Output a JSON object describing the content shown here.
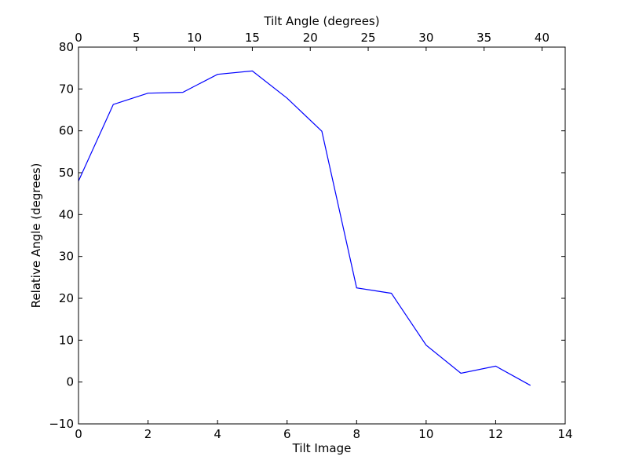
{
  "chart_data": {
    "type": "line",
    "title": "",
    "xlabel": "Tilt Image",
    "ylabel": "Relative Angle (degrees)",
    "x2label": "Tilt Angle (degrees)",
    "xlim": [
      0,
      14
    ],
    "ylim": [
      -10,
      80
    ],
    "x2lim": [
      0,
      42
    ],
    "xticks": [
      0,
      2,
      4,
      6,
      8,
      10,
      12,
      14
    ],
    "yticks": [
      -10,
      0,
      10,
      20,
      30,
      40,
      50,
      60,
      70,
      80
    ],
    "x2ticks": [
      0,
      5,
      10,
      15,
      20,
      25,
      30,
      35,
      40
    ],
    "grid": false,
    "line_color": "#0000ff",
    "series": [
      {
        "x": [
          0,
          1,
          2,
          3,
          4,
          5,
          6,
          7,
          8,
          9,
          10,
          11,
          12,
          13
        ],
        "values": [
          48,
          66.3,
          69,
          69.2,
          73.5,
          74.3,
          67.8,
          59.9,
          22.5,
          21.2,
          8.8,
          2.1,
          3.8,
          -0.8
        ]
      }
    ]
  }
}
